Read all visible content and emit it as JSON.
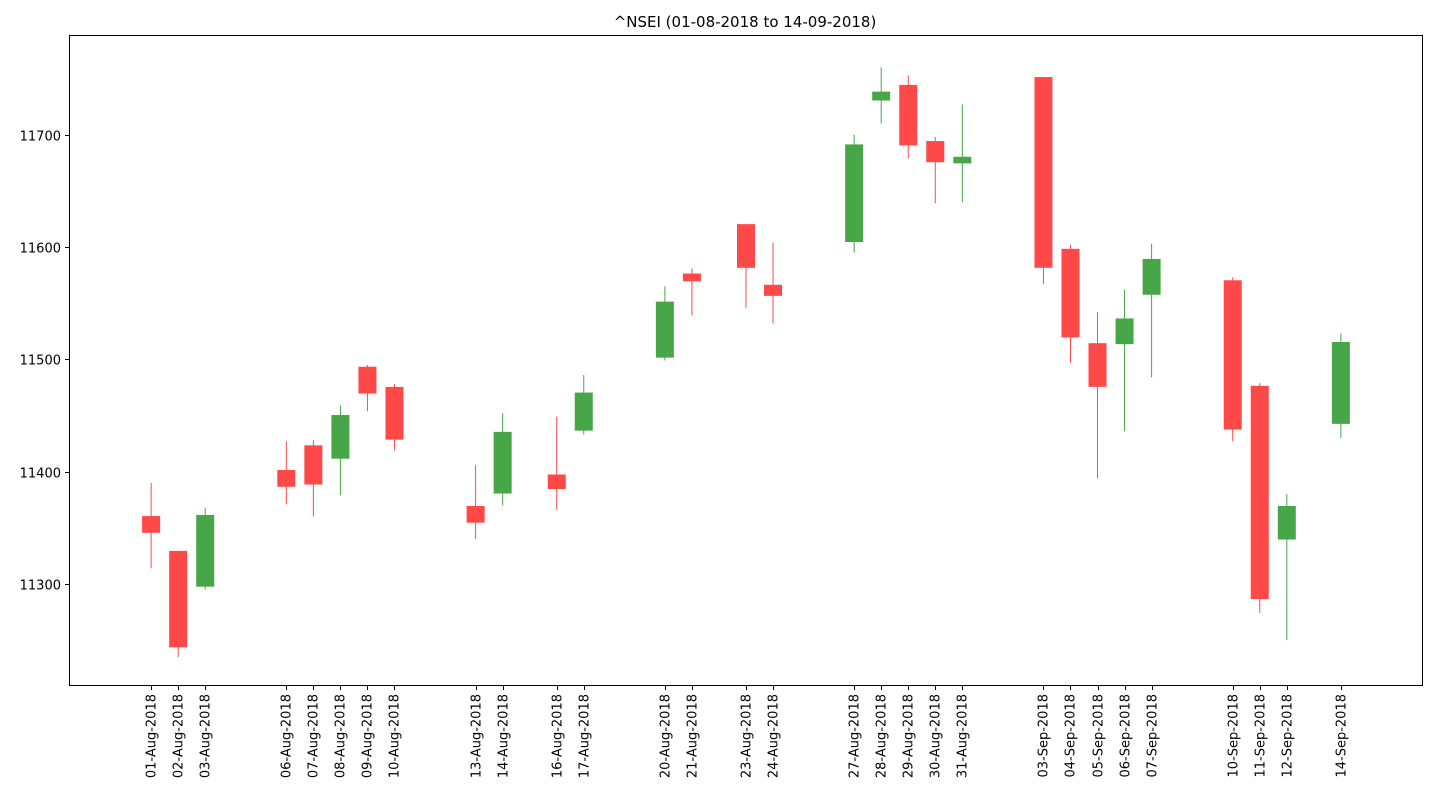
{
  "chart_data": {
    "type": "candlestick",
    "title": "^NSEI (01-08-2018 to 14-09-2018)",
    "xlabel": "",
    "ylabel": "",
    "ylim": [
      11210,
      11788
    ],
    "yticks": [
      11300,
      11400,
      11500,
      11600,
      11700
    ],
    "x_axis": "trading days on a daily calendar scale (weekends leave gaps)",
    "x_range": [
      "29-Jul-2018",
      "17-Sep-2018"
    ],
    "grid": false,
    "legend": "none",
    "colors": {
      "up": "#2e9a2e",
      "down": "#ff3030"
    },
    "candles": [
      {
        "date": "01-Aug-2018",
        "open": 11360,
        "high": 11390,
        "low": 11314,
        "close": 11346
      },
      {
        "date": "02-Aug-2018",
        "open": 11329,
        "high": 11329,
        "low": 11235,
        "close": 11244
      },
      {
        "date": "03-Aug-2018",
        "open": 11298,
        "high": 11368,
        "low": 11295,
        "close": 11361
      },
      {
        "date": "06-Aug-2018",
        "open": 11401,
        "high": 11427,
        "low": 11371,
        "close": 11387
      },
      {
        "date": "07-Aug-2018",
        "open": 11423,
        "high": 11428,
        "low": 11360,
        "close": 11389
      },
      {
        "date": "08-Aug-2018",
        "open": 11412,
        "high": 11459,
        "low": 11379,
        "close": 11450
      },
      {
        "date": "09-Aug-2018",
        "open": 11493,
        "high": 11495,
        "low": 11454,
        "close": 11470
      },
      {
        "date": "10-Aug-2018",
        "open": 11475,
        "high": 11478,
        "low": 11419,
        "close": 11429
      },
      {
        "date": "13-Aug-2018",
        "open": 11369,
        "high": 11406,
        "low": 11340,
        "close": 11355
      },
      {
        "date": "14-Aug-2018",
        "open": 11381,
        "high": 11452,
        "low": 11370,
        "close": 11435
      },
      {
        "date": "16-Aug-2018",
        "open": 11397,
        "high": 11449,
        "low": 11366,
        "close": 11385
      },
      {
        "date": "17-Aug-2018",
        "open": 11437,
        "high": 11486,
        "low": 11433,
        "close": 11470
      },
      {
        "date": "20-Aug-2018",
        "open": 11502,
        "high": 11565,
        "low": 11499,
        "close": 11551
      },
      {
        "date": "21-Aug-2018",
        "open": 11576,
        "high": 11581,
        "low": 11539,
        "close": 11570
      },
      {
        "date": "23-Aug-2018",
        "open": 11620,
        "high": 11620,
        "low": 11546,
        "close": 11582
      },
      {
        "date": "24-Aug-2018",
        "open": 11566,
        "high": 11604,
        "low": 11532,
        "close": 11557
      },
      {
        "date": "27-Aug-2018",
        "open": 11605,
        "high": 11700,
        "low": 11595,
        "close": 11691
      },
      {
        "date": "28-Aug-2018",
        "open": 11731,
        "high": 11760,
        "low": 11710,
        "close": 11738
      },
      {
        "date": "29-Aug-2018",
        "open": 11744,
        "high": 11753,
        "low": 11679,
        "close": 11691
      },
      {
        "date": "30-Aug-2018",
        "open": 11694,
        "high": 11698,
        "low": 11639,
        "close": 11676
      },
      {
        "date": "31-Aug-2018",
        "open": 11675,
        "high": 11727,
        "low": 11640,
        "close": 11680
      },
      {
        "date": "03-Sep-2018",
        "open": 11751,
        "high": 11751,
        "low": 11567,
        "close": 11582
      },
      {
        "date": "04-Sep-2018",
        "open": 11598,
        "high": 11602,
        "low": 11497,
        "close": 11520
      },
      {
        "date": "05-Sep-2018",
        "open": 11514,
        "high": 11542,
        "low": 11394,
        "close": 11476
      },
      {
        "date": "06-Sep-2018",
        "open": 11514,
        "high": 11562,
        "low": 11436,
        "close": 11536
      },
      {
        "date": "07-Sep-2018",
        "open": 11558,
        "high": 11603,
        "low": 11484,
        "close": 11589
      },
      {
        "date": "10-Sep-2018",
        "open": 11570,
        "high": 11573,
        "low": 11427,
        "close": 11438
      },
      {
        "date": "11-Sep-2018",
        "open": 11476,
        "high": 11479,
        "low": 11274,
        "close": 11287
      },
      {
        "date": "12-Sep-2018",
        "open": 11340,
        "high": 11380,
        "low": 11250,
        "close": 11369
      },
      {
        "date": "14-Sep-2018",
        "open": 11443,
        "high": 11523,
        "low": 11430,
        "close": 11515
      }
    ]
  }
}
